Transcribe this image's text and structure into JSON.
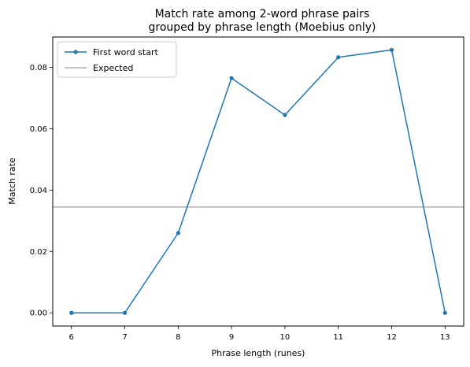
{
  "chart_data": {
    "type": "line",
    "title_line1": "Match rate among 2-word phrase pairs",
    "title_line2": "grouped by phrase length (Moebius only)",
    "xlabel": "Phrase length (runes)",
    "ylabel": "Match rate",
    "x": [
      6,
      7,
      8,
      9,
      10,
      11,
      12,
      13
    ],
    "xlim": [
      5.65,
      13.35
    ],
    "ylim": [
      -0.0043,
      0.0899
    ],
    "x_ticks": [
      6,
      7,
      8,
      9,
      10,
      11,
      12,
      13
    ],
    "y_ticks": [
      0.0,
      0.02,
      0.04,
      0.06,
      0.08
    ],
    "y_tick_labels": [
      "0.00",
      "0.02",
      "0.04",
      "0.06",
      "0.08"
    ],
    "series": [
      {
        "name": "First word start",
        "color": "#1f77b4",
        "marker": "circle",
        "values": [
          0.0,
          0.0,
          0.026,
          0.0765,
          0.0645,
          0.0833,
          0.0857,
          0.0
        ]
      }
    ],
    "hlines": [
      {
        "name": "Expected",
        "color": "#b0b0b0",
        "value": 0.0345
      }
    ],
    "grid": false,
    "legend_position": "upper-left"
  }
}
